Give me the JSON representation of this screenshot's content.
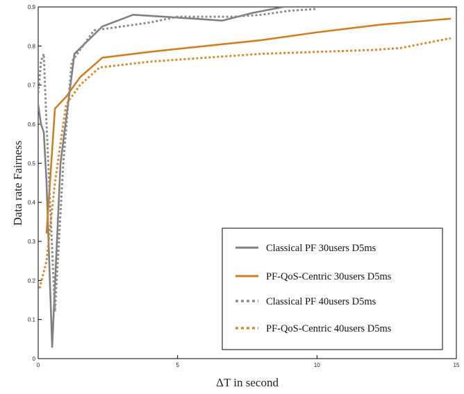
{
  "chart_data": {
    "type": "line",
    "title": "",
    "xlabel": "ΔT in second",
    "ylabel": "Data rate Fairness",
    "xlim": [
      0,
      15
    ],
    "ylim": [
      0,
      0.9
    ],
    "xticks": [
      "0",
      "5",
      "10",
      "15"
    ],
    "yticks": [
      "0",
      "0.1",
      "0.2",
      "0.3",
      "0.4",
      "0.5",
      "0.6",
      "0.7",
      "0.8",
      "0.9"
    ],
    "grid": false,
    "legend_position": "bottom-right",
    "series": [
      {
        "name": "Classical PF 30users D5ms",
        "color": "#808080",
        "style": "solid",
        "x": [
          0,
          0.1,
          0.2,
          0.3,
          0.5,
          0.8,
          1.3,
          2.3,
          3.4,
          4.5,
          5.6,
          6.6,
          7.7,
          8.8
        ],
        "y": [
          0.65,
          0.6,
          0.58,
          0.45,
          0.03,
          0.5,
          0.78,
          0.85,
          0.88,
          0.875,
          0.87,
          0.865,
          0.885,
          0.9
        ]
      },
      {
        "name": "PF-QoS-Centric 30users D5ms",
        "color": "#D07E22",
        "style": "solid",
        "x": [
          0.3,
          0.6,
          1.0,
          1.5,
          2.3,
          4.0,
          6.0,
          8.0,
          10.0,
          12.3,
          14.8
        ],
        "y": [
          0.32,
          0.64,
          0.67,
          0.72,
          0.77,
          0.785,
          0.8,
          0.815,
          0.835,
          0.855,
          0.87
        ]
      },
      {
        "name": "Classical PF 40users D5ms",
        "color": "#8C8C8C",
        "style": "dotted",
        "x": [
          0,
          0.1,
          0.2,
          0.3,
          0.6,
          0.9,
          1.2,
          2.0,
          3.0,
          4.0,
          5.0,
          6.0,
          7.0,
          8.0,
          9.0,
          10.0
        ],
        "y": [
          0.68,
          0.76,
          0.78,
          0.6,
          0.12,
          0.5,
          0.76,
          0.84,
          0.85,
          0.86,
          0.875,
          0.875,
          0.875,
          0.88,
          0.89,
          0.895
        ]
      },
      {
        "name": "PF-QoS-Centric 40users D5ms",
        "color": "#D88A2D",
        "style": "dotted",
        "x": [
          0.05,
          0.3,
          0.6,
          1.0,
          1.5,
          2.2,
          4.0,
          6.0,
          8.0,
          10.0,
          12.0,
          13.0,
          14.8
        ],
        "y": [
          0.18,
          0.25,
          0.45,
          0.65,
          0.7,
          0.745,
          0.76,
          0.77,
          0.78,
          0.785,
          0.79,
          0.795,
          0.82
        ]
      }
    ]
  }
}
